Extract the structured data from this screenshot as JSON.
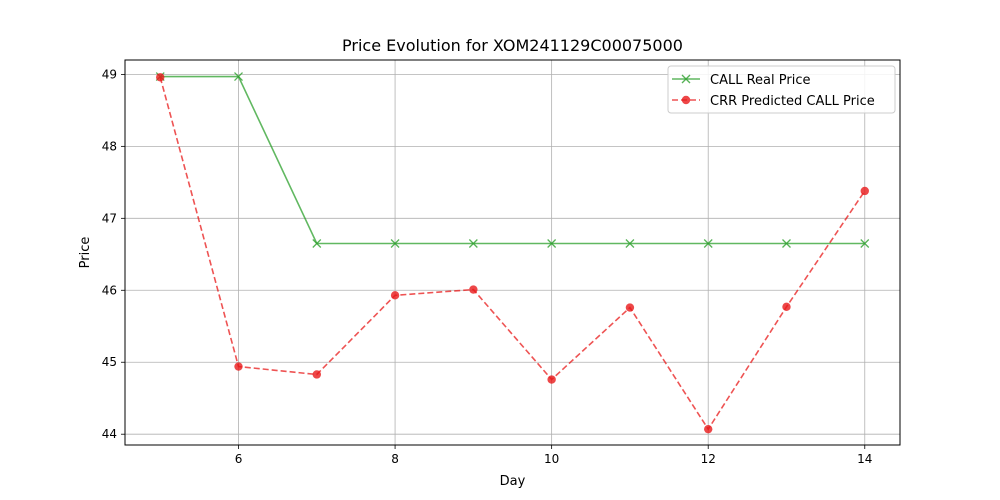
{
  "chart_data": {
    "type": "line",
    "title": "Price Evolution for XOM241129C00075000",
    "xlabel": "Day",
    "ylabel": "Price",
    "xlim": [
      4.55,
      14.45
    ],
    "ylim": [
      43.85,
      49.2
    ],
    "xticks": [
      6,
      8,
      10,
      12,
      14
    ],
    "yticks": [
      44,
      45,
      46,
      47,
      48,
      49
    ],
    "grid": true,
    "legend_position": "top-right",
    "x": [
      5,
      6,
      7,
      8,
      9,
      10,
      11,
      12,
      13,
      14
    ],
    "series": [
      {
        "name": "CALL Real Price",
        "color": "#2ca02c",
        "marker": "x",
        "linestyle": "solid",
        "values": [
          48.97,
          48.97,
          46.65,
          46.65,
          46.65,
          46.65,
          46.65,
          46.65,
          46.65,
          46.65
        ]
      },
      {
        "name": "CRR Predicted CALL Price",
        "color": "#e8191a",
        "marker": "o",
        "linestyle": "dashed",
        "values": [
          48.96,
          44.94,
          44.83,
          45.93,
          46.01,
          44.76,
          45.76,
          44.07,
          45.77,
          47.38
        ]
      }
    ]
  }
}
